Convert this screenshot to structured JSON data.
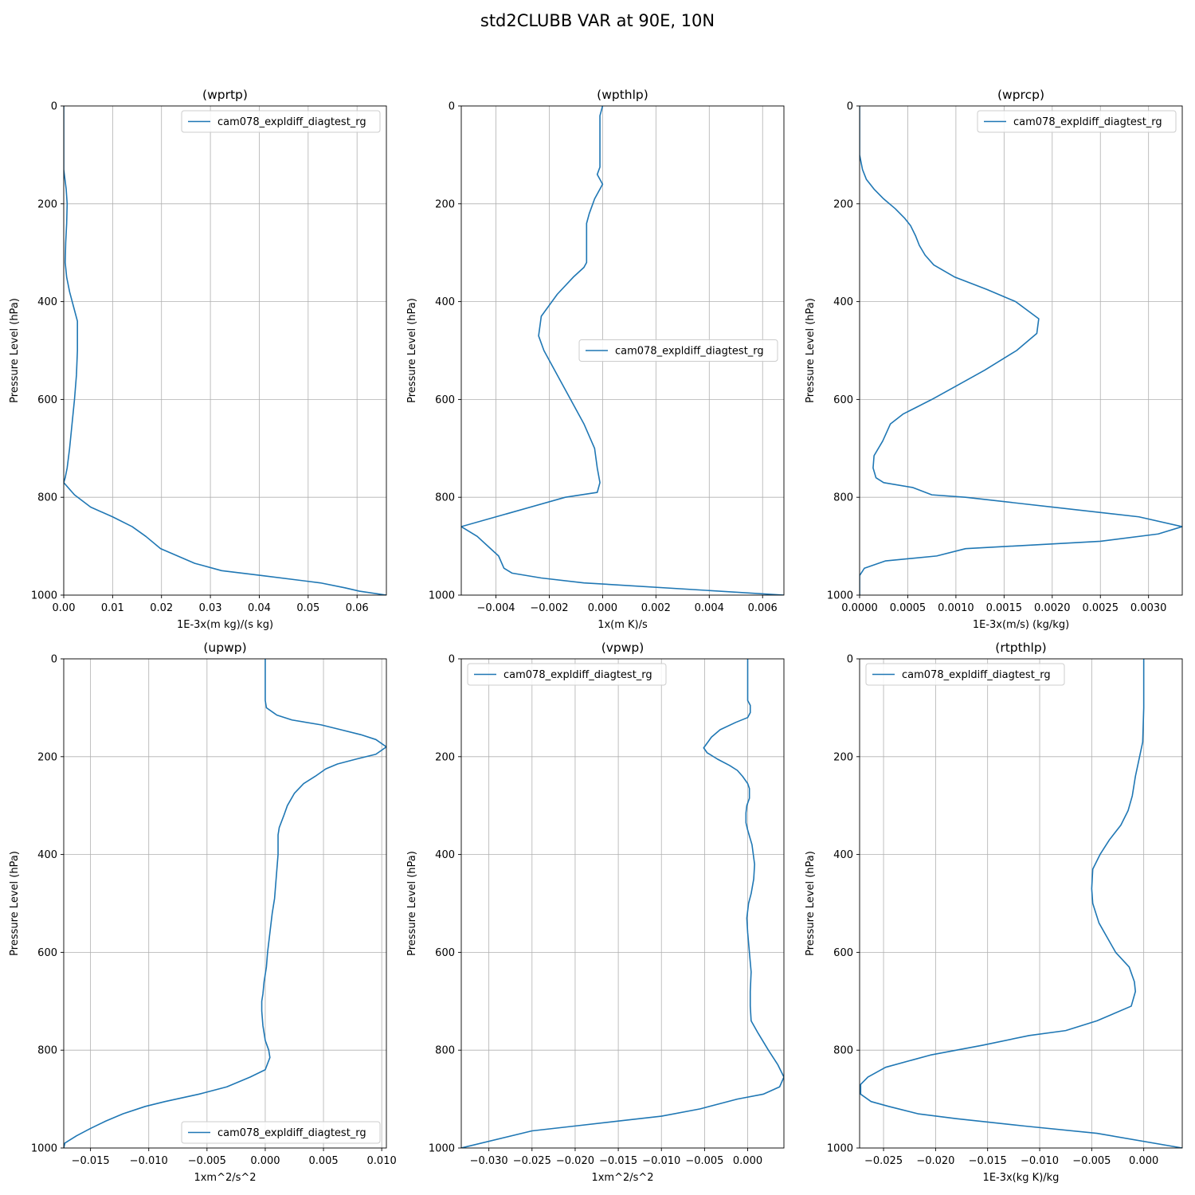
{
  "figure": {
    "title": "std2CLUBB VAR at 90E, 10N"
  },
  "colors": {
    "series": "#1f77b4",
    "grid": "#b0b0b0",
    "axes": "#000000",
    "legend_border": "#cccccc"
  },
  "chart_data": [
    {
      "type": "line",
      "title": "(wprtp)",
      "xlabel": "1E-3x(m kg)/(s kg)",
      "ylabel": "Pressure Level (hPa)",
      "xlim": [
        0.0,
        0.066
      ],
      "ylim": [
        1000,
        0
      ],
      "y_inverted": true,
      "xticks": [
        0.0,
        0.01,
        0.02,
        0.03,
        0.04,
        0.05,
        0.06
      ],
      "xtick_labels": [
        "0.00",
        "0.01",
        "0.02",
        "0.03",
        "0.04",
        "0.05",
        "0.06"
      ],
      "yticks": [
        0,
        200,
        400,
        600,
        800,
        1000
      ],
      "ytick_labels": [
        "0",
        "200",
        "400",
        "600",
        "800",
        "1000"
      ],
      "grid": true,
      "legend_position": "upper right",
      "series": [
        {
          "name": "cam078_expldiff_diagtest_rg",
          "x": [
            0.0,
            0.0,
            0.0005,
            0.0007,
            0.0006,
            0.0004,
            0.0003,
            0.0006,
            0.0012,
            0.002,
            0.0028,
            0.0028,
            0.0026,
            0.0022,
            0.0017,
            0.0012,
            0.0007,
            0.0003,
            0.0,
            0.0022,
            0.0055,
            0.01,
            0.014,
            0.0168,
            0.0198,
            0.0233,
            0.0268,
            0.0323,
            0.0405,
            0.0525,
            0.0575,
            0.0605,
            0.066
          ],
          "y": [
            0,
            130,
            170,
            200,
            240,
            280,
            320,
            350,
            380,
            410,
            440,
            500,
            550,
            600,
            650,
            700,
            740,
            760,
            770,
            795,
            820,
            840,
            860,
            880,
            905,
            920,
            935,
            950,
            960,
            975,
            985,
            992,
            1000
          ]
        }
      ]
    },
    {
      "type": "line",
      "title": "(wpthlp)",
      "xlabel": "1x(m K)/s",
      "ylabel": "Pressure Level (hPa)",
      "xlim": [
        -0.0053,
        0.0068
      ],
      "ylim": [
        1000,
        0
      ],
      "y_inverted": true,
      "xticks": [
        -0.004,
        -0.002,
        0.0,
        0.002,
        0.004,
        0.006
      ],
      "xtick_labels": [
        "−0.004",
        "−0.002",
        "0.000",
        "0.002",
        "0.004",
        "0.006"
      ],
      "yticks": [
        0,
        200,
        400,
        600,
        800,
        1000
      ],
      "ytick_labels": [
        "0",
        "200",
        "400",
        "600",
        "800",
        "1000"
      ],
      "grid": true,
      "legend_position": "center right",
      "series": [
        {
          "name": "cam078_expldiff_diagtest_rg",
          "x": [
            0.0,
            -0.0001,
            -0.0001,
            -0.0001,
            -0.0001,
            -0.0002,
            0.0,
            -0.0003,
            -0.0005,
            -0.0006,
            -0.0006,
            -0.0006,
            -0.0006,
            -0.0007,
            -0.0011,
            -0.0017,
            -0.0023,
            -0.0024,
            -0.0022,
            -0.0016,
            -0.0013,
            -0.0007,
            -0.0003,
            -0.0002,
            -0.0001,
            -0.0002,
            -0.0014,
            -0.0053,
            -0.0053,
            -0.0047,
            -0.0043,
            -0.0039,
            -0.0037,
            -0.0034,
            -0.0023,
            -0.0007,
            0.0068
          ],
          "y": [
            0,
            20,
            50,
            100,
            125,
            140,
            160,
            190,
            220,
            240,
            260,
            290,
            320,
            330,
            350,
            385,
            430,
            470,
            500,
            560,
            590,
            650,
            700,
            740,
            770,
            790,
            800,
            860,
            860,
            880,
            900,
            920,
            945,
            955,
            965,
            975,
            1000
          ]
        }
      ]
    },
    {
      "type": "line",
      "title": "(wprcp)",
      "xlabel": "1E-3x(m/s) (kg/kg)",
      "ylabel": "Pressure Level (hPa)",
      "xlim": [
        0.0,
        0.00335
      ],
      "ylim": [
        1000,
        0
      ],
      "y_inverted": true,
      "xticks": [
        0.0,
        0.0005,
        0.001,
        0.0015,
        0.002,
        0.0025,
        0.003
      ],
      "xtick_labels": [
        "0.0000",
        "0.0005",
        "0.0010",
        "0.0015",
        "0.0020",
        "0.0025",
        "0.0030"
      ],
      "yticks": [
        0,
        200,
        400,
        600,
        800,
        1000
      ],
      "ytick_labels": [
        "0",
        "200",
        "400",
        "600",
        "800",
        "1000"
      ],
      "grid": true,
      "legend_position": "upper right",
      "series": [
        {
          "name": "cam078_expldiff_diagtest_rg",
          "x": [
            0.0,
            0.0,
            3e-05,
            7e-05,
            0.00015,
            0.00025,
            0.00037,
            0.00047,
            0.00053,
            0.00058,
            0.00062,
            0.00068,
            0.00077,
            0.00099,
            0.00132,
            0.00162,
            0.00186,
            0.00184,
            0.00163,
            0.0013,
            0.00098,
            0.00075,
            0.0006,
            0.00045,
            0.00032,
            0.00024,
            0.00015,
            0.00014,
            0.00014,
            0.00017,
            0.00025,
            0.00055,
            0.00075,
            0.0011,
            0.0029,
            0.00335,
            0.0031,
            0.0025,
            0.0011,
            0.0008,
            0.00027,
            5e-05,
            0.0,
            0.0
          ],
          "y": [
            0,
            100,
            130,
            150,
            170,
            190,
            210,
            230,
            245,
            265,
            285,
            305,
            325,
            350,
            375,
            400,
            435,
            465,
            500,
            540,
            575,
            600,
            615,
            630,
            650,
            685,
            715,
            740,
            740,
            760,
            770,
            780,
            795,
            800,
            840,
            860,
            875,
            890,
            905,
            920,
            930,
            945,
            960,
            1000
          ]
        }
      ]
    },
    {
      "type": "line",
      "title": "(upwp)",
      "xlabel": "1xm^2/s^2",
      "ylabel": "Pressure Level (hPa)",
      "xlim": [
        -0.0173,
        0.0104
      ],
      "ylim": [
        1000,
        0
      ],
      "y_inverted": true,
      "xticks": [
        -0.015,
        -0.01,
        -0.005,
        0.0,
        0.005,
        0.01
      ],
      "xtick_labels": [
        "−0.015",
        "−0.010",
        "−0.005",
        "0.000",
        "0.005",
        "0.010"
      ],
      "yticks": [
        0,
        200,
        400,
        600,
        800,
        1000
      ],
      "ytick_labels": [
        "0",
        "200",
        "400",
        "600",
        "800",
        "1000"
      ],
      "grid": true,
      "legend_position": "lower right",
      "series": [
        {
          "name": "cam078_expldiff_diagtest_rg",
          "x": [
            0.0,
            0.0,
            0.0,
            0.0001,
            0.0007,
            0.001,
            0.0023,
            0.0048,
            0.0065,
            0.0082,
            0.0095,
            0.0104,
            0.0095,
            0.0078,
            0.0062,
            0.0052,
            0.0043,
            0.0033,
            0.0025,
            0.0019,
            0.0016,
            0.0012,
            0.0011,
            0.0011,
            0.001,
            0.0009,
            0.0008,
            0.0006,
            0.0004,
            0.0002,
            0.0001,
            -0.0001,
            -0.0002,
            -0.0003,
            -0.0003,
            -0.0002,
            0.0,
            0.0003,
            0.0004,
            0.0,
            -0.0013,
            -0.0033,
            -0.0057,
            -0.0086,
            -0.0103,
            -0.0122,
            -0.0137,
            -0.015,
            -0.0162,
            -0.0172,
            -0.0173
          ],
          "y": [
            0,
            50,
            85,
            100,
            110,
            115,
            125,
            135,
            145,
            155,
            165,
            180,
            195,
            205,
            215,
            225,
            240,
            255,
            275,
            300,
            320,
            345,
            360,
            400,
            430,
            460,
            490,
            520,
            560,
            600,
            630,
            660,
            685,
            700,
            720,
            750,
            780,
            800,
            815,
            840,
            855,
            875,
            890,
            905,
            915,
            930,
            945,
            960,
            975,
            990,
            1000
          ]
        }
      ]
    },
    {
      "type": "line",
      "title": "(vpwp)",
      "xlabel": "1xm^2/s^2",
      "ylabel": "Pressure Level (hPa)",
      "xlim": [
        -0.0332,
        0.0042
      ],
      "ylim": [
        1000,
        0
      ],
      "y_inverted": true,
      "xticks": [
        -0.03,
        -0.025,
        -0.02,
        -0.015,
        -0.01,
        -0.005,
        0.0
      ],
      "xtick_labels": [
        "−0.030",
        "−0.025",
        "−0.020",
        "−0.015",
        "−0.010",
        "−0.005",
        "0.000"
      ],
      "yticks": [
        0,
        200,
        400,
        600,
        800,
        1000
      ],
      "ytick_labels": [
        "0",
        "200",
        "400",
        "600",
        "800",
        "1000"
      ],
      "grid": true,
      "legend_position": "upper left",
      "series": [
        {
          "name": "cam078_expldiff_diagtest_rg",
          "x": [
            0.0,
            0.0,
            0.0,
            0.0003,
            0.0003,
            0.0,
            -0.0014,
            -0.0032,
            -0.0042,
            -0.0051,
            -0.0047,
            -0.0035,
            -0.0021,
            -0.0012,
            -0.0006,
            0.0,
            0.0002,
            0.0002,
            -0.0001,
            -0.0002,
            -0.0002,
            0.0,
            0.0005,
            0.0008,
            0.0007,
            0.0004,
            0.0001,
            -0.0001,
            0.0,
            0.0002,
            0.0004,
            0.0003,
            0.0003,
            0.0004,
            0.0012,
            0.0024,
            0.0035,
            0.0042,
            0.0037,
            0.0018,
            -0.0012,
            -0.0055,
            -0.01,
            -0.015,
            -0.02,
            -0.025,
            -0.0332
          ],
          "y": [
            0,
            60,
            85,
            95,
            110,
            120,
            130,
            145,
            160,
            182,
            192,
            205,
            218,
            228,
            240,
            255,
            265,
            285,
            300,
            315,
            335,
            350,
            380,
            420,
            450,
            480,
            500,
            530,
            560,
            600,
            640,
            680,
            710,
            740,
            765,
            800,
            830,
            855,
            875,
            890,
            900,
            920,
            935,
            945,
            955,
            965,
            1000
          ]
        }
      ]
    },
    {
      "type": "line",
      "title": "(rtpthlp)",
      "xlabel": "1E-3x(kg K)/kg",
      "ylabel": "Pressure Level (hPa)",
      "xlim": [
        -0.0273,
        0.0037
      ],
      "ylim": [
        1000,
        0
      ],
      "y_inverted": true,
      "xticks": [
        -0.025,
        -0.02,
        -0.015,
        -0.01,
        -0.005,
        0.0
      ],
      "xtick_labels": [
        "−0.025",
        "−0.020",
        "−0.015",
        "−0.010",
        "−0.005",
        "0.000"
      ],
      "yticks": [
        0,
        200,
        400,
        600,
        800,
        1000
      ],
      "ytick_labels": [
        "0",
        "200",
        "400",
        "600",
        "800",
        "1000"
      ],
      "grid": true,
      "legend_position": "upper left",
      "series": [
        {
          "name": "cam078_expldiff_diagtest_rg",
          "x": [
            0.0,
            0.0,
            -0.0001,
            -0.0004,
            -0.0008,
            -0.0011,
            -0.0015,
            -0.0022,
            -0.0033,
            -0.0042,
            -0.0049,
            -0.005,
            -0.0049,
            -0.0043,
            -0.0027,
            -0.0014,
            -0.0009,
            -0.0008,
            -0.0012,
            -0.0045,
            -0.0075,
            -0.011,
            -0.0155,
            -0.0205,
            -0.0248,
            -0.0265,
            -0.0272,
            -0.0272,
            -0.0262,
            -0.0245,
            -0.0217,
            -0.018,
            -0.0115,
            -0.0045,
            0.0037
          ],
          "y": [
            0,
            100,
            170,
            200,
            240,
            280,
            310,
            340,
            370,
            400,
            430,
            470,
            500,
            540,
            600,
            630,
            660,
            680,
            710,
            740,
            760,
            770,
            790,
            810,
            835,
            855,
            870,
            890,
            905,
            915,
            930,
            940,
            955,
            970,
            1000
          ]
        }
      ]
    }
  ]
}
